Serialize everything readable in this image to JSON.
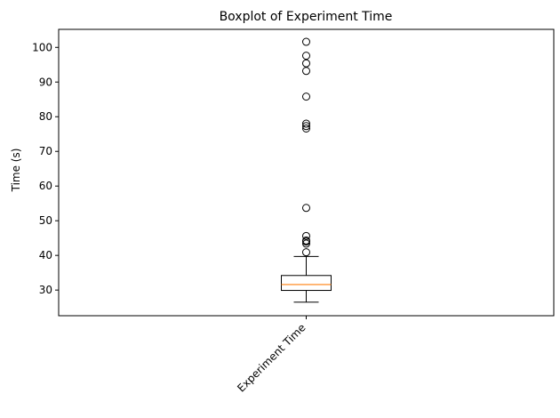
{
  "chart_data": {
    "type": "boxplot",
    "title": "Boxplot of Experiment Time",
    "xlabel": "",
    "ylabel": "Time (s)",
    "categories": [
      "Experiment Time"
    ],
    "ylim": [
      22.6,
      105.2
    ],
    "yticks": [
      30,
      40,
      50,
      60,
      70,
      80,
      90,
      100
    ],
    "grid": false,
    "boxes": [
      {
        "name": "Experiment Time",
        "whisker_low": 26.5,
        "q1": 29.9,
        "median": 31.6,
        "q3": 34.2,
        "whisker_high": 39.7,
        "outliers": [
          40.9,
          43.4,
          44.0,
          44.3,
          45.6,
          53.7,
          76.6,
          77.3,
          78.0,
          85.8,
          93.2,
          95.4,
          97.6,
          101.6
        ]
      }
    ],
    "colors": {
      "box": "#000000",
      "median": "#ff7f0e",
      "outlier": "#000000"
    }
  }
}
